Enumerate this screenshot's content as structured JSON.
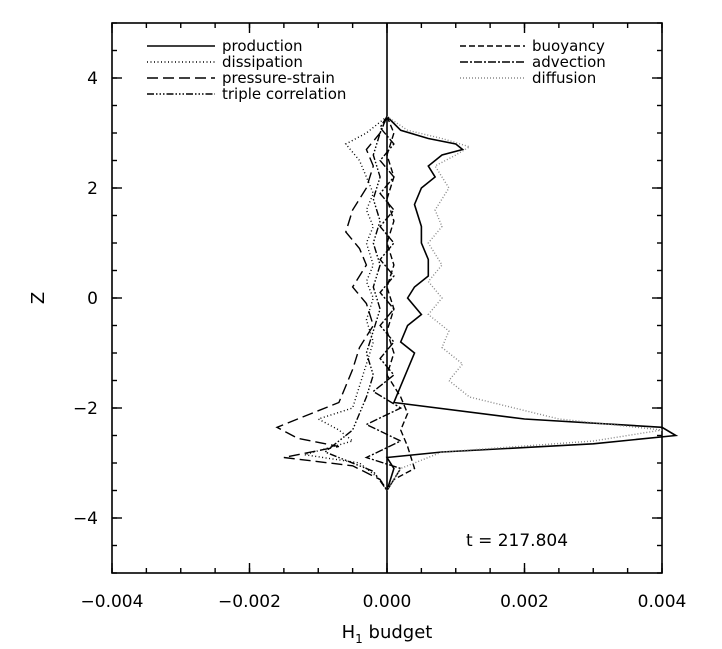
{
  "chart_data": {
    "type": "line",
    "xlabel": "H",
    "xlabel_subscript": "1",
    "xlabel_suffix": " budget",
    "ylabel": "Z",
    "xlim": [
      -0.004,
      0.004
    ],
    "ylim": [
      -5,
      5
    ],
    "x_ticks": [
      -0.004,
      -0.002,
      0.0,
      0.002,
      0.004
    ],
    "x_tick_labels": [
      "−0.004",
      "−0.002",
      "0.000",
      "0.002",
      "0.004"
    ],
    "y_ticks": [
      -4,
      -2,
      0,
      2,
      4
    ],
    "y_tick_labels": [
      "−4",
      "−2",
      "0",
      "2",
      "4"
    ],
    "annotation": "t = 217.804",
    "grid": false,
    "legend_placement": "top",
    "series": [
      {
        "name": "production",
        "dash": "solid",
        "points": [
          [
            0,
            3.3
          ],
          [
            0.0002,
            3.05
          ],
          [
            0.0006,
            2.9
          ],
          [
            0.001,
            2.8
          ],
          [
            0.0011,
            2.7
          ],
          [
            0.0008,
            2.6
          ],
          [
            0.0006,
            2.4
          ],
          [
            0.0007,
            2.2
          ],
          [
            0.0005,
            2.0
          ],
          [
            0.0004,
            1.7
          ],
          [
            0.0005,
            1.3
          ],
          [
            0.0005,
            1.0
          ],
          [
            0.0006,
            0.7
          ],
          [
            0.0006,
            0.4
          ],
          [
            0.0004,
            0.2
          ],
          [
            0.0003,
            0.0
          ],
          [
            0.0005,
            -0.3
          ],
          [
            0.0003,
            -0.5
          ],
          [
            0.0002,
            -0.8
          ],
          [
            0.0004,
            -1.0
          ],
          [
            0.0003,
            -1.3
          ],
          [
            0.0002,
            -1.6
          ],
          [
            0.0001,
            -1.9
          ],
          [
            0.002,
            -2.2
          ],
          [
            0.004,
            -2.35
          ],
          [
            0.0042,
            -2.5
          ],
          [
            0.003,
            -2.65
          ],
          [
            0.0008,
            -2.8
          ],
          [
            0,
            -2.9
          ],
          [
            0.0001,
            -3.1
          ],
          [
            0,
            -3.5
          ]
        ]
      },
      {
        "name": "dissipation",
        "dash": "1,2.5",
        "points": [
          [
            0,
            3.3
          ],
          [
            -0.0003,
            3.0
          ],
          [
            -0.0006,
            2.8
          ],
          [
            -0.0004,
            2.5
          ],
          [
            -0.0003,
            2.2
          ],
          [
            -0.0002,
            1.9
          ],
          [
            -0.0003,
            1.6
          ],
          [
            -0.0002,
            1.3
          ],
          [
            -0.0003,
            1.0
          ],
          [
            -0.0002,
            0.6
          ],
          [
            -0.0003,
            0.3
          ],
          [
            -0.0002,
            0.0
          ],
          [
            -0.0003,
            -0.4
          ],
          [
            -0.0002,
            -0.8
          ],
          [
            -0.0003,
            -1.2
          ],
          [
            -0.0004,
            -1.6
          ],
          [
            -0.0005,
            -2.0
          ],
          [
            -0.001,
            -2.2
          ],
          [
            -0.0007,
            -2.4
          ],
          [
            -0.0005,
            -2.6
          ],
          [
            -0.0012,
            -2.85
          ],
          [
            -0.0004,
            -3.0
          ],
          [
            -0.0001,
            -3.3
          ],
          [
            0,
            -3.5
          ]
        ]
      },
      {
        "name": "pressure-strain",
        "dash": "11,5",
        "points": [
          [
            0,
            3.3
          ],
          [
            -0.0001,
            3.0
          ],
          [
            -0.0003,
            2.7
          ],
          [
            -0.0002,
            2.4
          ],
          [
            -0.0003,
            2.0
          ],
          [
            -0.0005,
            1.6
          ],
          [
            -0.0006,
            1.2
          ],
          [
            -0.0004,
            0.9
          ],
          [
            -0.0003,
            0.6
          ],
          [
            -0.0005,
            0.2
          ],
          [
            -0.0003,
            -0.1
          ],
          [
            -0.0002,
            -0.5
          ],
          [
            -0.0004,
            -0.9
          ],
          [
            -0.0005,
            -1.3
          ],
          [
            -0.0006,
            -1.6
          ],
          [
            -0.0007,
            -1.9
          ],
          [
            -0.0011,
            -2.1
          ],
          [
            -0.0016,
            -2.35
          ],
          [
            -0.0013,
            -2.55
          ],
          [
            -0.0007,
            -2.7
          ],
          [
            -0.0015,
            -2.9
          ],
          [
            -0.0005,
            -3.05
          ],
          [
            -0.0001,
            -3.3
          ],
          [
            0,
            -3.5
          ]
        ]
      },
      {
        "name": "triple correlation",
        "dash": "7,2,1.5,2,1.5,2,1.5,2",
        "points": [
          [
            0,
            3.3
          ],
          [
            -0.0001,
            3.0
          ],
          [
            -0.0002,
            2.6
          ],
          [
            -0.0001,
            2.2
          ],
          [
            -0.0002,
            1.8
          ],
          [
            -0.0001,
            1.4
          ],
          [
            -0.0002,
            1.0
          ],
          [
            -0.0001,
            0.6
          ],
          [
            -0.0002,
            0.2
          ],
          [
            -0.0001,
            -0.2
          ],
          [
            -0.0002,
            -0.6
          ],
          [
            -0.0003,
            -1.0
          ],
          [
            -0.0002,
            -1.4
          ],
          [
            -0.0003,
            -1.8
          ],
          [
            -0.0004,
            -2.1
          ],
          [
            -0.0005,
            -2.4
          ],
          [
            -0.0009,
            -2.8
          ],
          [
            -0.0006,
            -2.95
          ],
          [
            -0.0002,
            -3.15
          ],
          [
            0,
            -3.5
          ]
        ]
      },
      {
        "name": "buoyancy",
        "dash": "6,3",
        "points": [
          [
            0,
            3.3
          ],
          [
            0.0001,
            3.0
          ],
          [
            0,
            2.6
          ],
          [
            0.0001,
            2.2
          ],
          [
            0,
            1.8
          ],
          [
            0.0001,
            1.4
          ],
          [
            0,
            1.0
          ],
          [
            0.0001,
            0.6
          ],
          [
            0,
            0.2
          ],
          [
            0.0001,
            -0.2
          ],
          [
            0,
            -0.6
          ],
          [
            0.0001,
            -1.0
          ],
          [
            0,
            -1.4
          ],
          [
            0.0002,
            -1.8
          ],
          [
            0.0003,
            -2.1
          ],
          [
            0.0002,
            -2.4
          ],
          [
            0.0003,
            -2.7
          ],
          [
            0.0004,
            -3.1
          ],
          [
            0.0001,
            -3.3
          ],
          [
            0,
            -3.5
          ]
        ]
      },
      {
        "name": "advection",
        "dash": "8,2,2,2",
        "points": [
          [
            0,
            3.3
          ],
          [
            -0.0001,
            3.1
          ],
          [
            0.0001,
            2.8
          ],
          [
            -0.0001,
            2.5
          ],
          [
            0.0001,
            2.2
          ],
          [
            -0.0001,
            1.9
          ],
          [
            0.0001,
            1.6
          ],
          [
            -0.0001,
            1.3
          ],
          [
            0.0001,
            1.0
          ],
          [
            -0.0001,
            0.7
          ],
          [
            0.0001,
            0.4
          ],
          [
            -0.0001,
            0.1
          ],
          [
            0.0001,
            -0.2
          ],
          [
            -0.0001,
            -0.5
          ],
          [
            0.0001,
            -0.8
          ],
          [
            -0.0001,
            -1.1
          ],
          [
            0.0001,
            -1.4
          ],
          [
            -0.0002,
            -1.7
          ],
          [
            0.0002,
            -2.0
          ],
          [
            -0.0003,
            -2.3
          ],
          [
            0.0002,
            -2.6
          ],
          [
            -0.0003,
            -2.9
          ],
          [
            0.0002,
            -3.1
          ],
          [
            0,
            -3.5
          ]
        ]
      },
      {
        "name": "diffusion",
        "dash": "1,2",
        "gray": true,
        "points": [
          [
            0,
            3.3
          ],
          [
            0.0003,
            3.05
          ],
          [
            0.0008,
            2.9
          ],
          [
            0.0012,
            2.75
          ],
          [
            0.001,
            2.6
          ],
          [
            0.0007,
            2.4
          ],
          [
            0.0009,
            2.0
          ],
          [
            0.0007,
            1.6
          ],
          [
            0.0008,
            1.3
          ],
          [
            0.0006,
            1.0
          ],
          [
            0.0008,
            0.6
          ],
          [
            0.0006,
            0.3
          ],
          [
            0.0008,
            0.0
          ],
          [
            0.0006,
            -0.3
          ],
          [
            0.0009,
            -0.6
          ],
          [
            0.0008,
            -0.9
          ],
          [
            0.0011,
            -1.2
          ],
          [
            0.0009,
            -1.5
          ],
          [
            0.0012,
            -1.8
          ],
          [
            0.0025,
            -2.2
          ],
          [
            0.004,
            -2.4
          ],
          [
            0.003,
            -2.6
          ],
          [
            0.0008,
            -2.8
          ],
          [
            0.0002,
            -3.1
          ],
          [
            0,
            -3.5
          ]
        ]
      }
    ]
  }
}
